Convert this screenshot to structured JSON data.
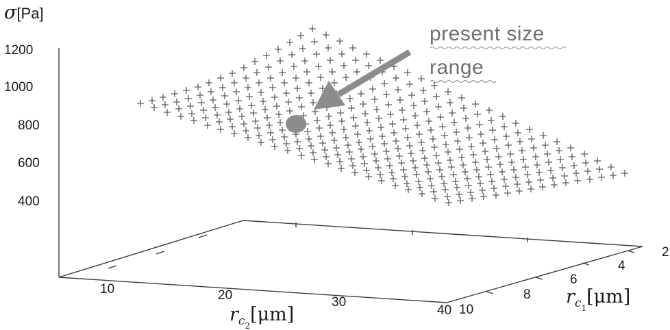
{
  "chart_data": {
    "type": "scatter",
    "projection": "3d",
    "marker": "+",
    "z_axis": {
      "symbol": "σ",
      "unit": "[Pa]",
      "ticks": [
        "1200",
        "1000",
        "800",
        "600",
        "400"
      ]
    },
    "x_axis": {
      "symbol": "r",
      "subscript": "c",
      "subsubscript": "2",
      "unit": "[μm]",
      "ticks": [
        "10",
        "20",
        "30",
        "40"
      ]
    },
    "y_axis": {
      "symbol": "r",
      "subscript": "c",
      "subsubscript": "1",
      "unit": "[μm]",
      "ticks": [
        "10",
        "8",
        "6",
        "4",
        "2"
      ]
    },
    "x_range": [
      3,
      40
    ],
    "y_range": [
      2,
      10
    ],
    "z_range": [
      300,
      1200
    ],
    "annotation": {
      "text_lines": [
        "present size",
        "range"
      ],
      "arrow": true
    },
    "highlight_point": {
      "x": 22,
      "y": 7,
      "z": 800
    },
    "colors": {
      "marks": "#5a5a5a",
      "arrow": "#8c8c8c",
      "highlight": "#8c8c8c",
      "annotation_text": "#707070"
    }
  }
}
